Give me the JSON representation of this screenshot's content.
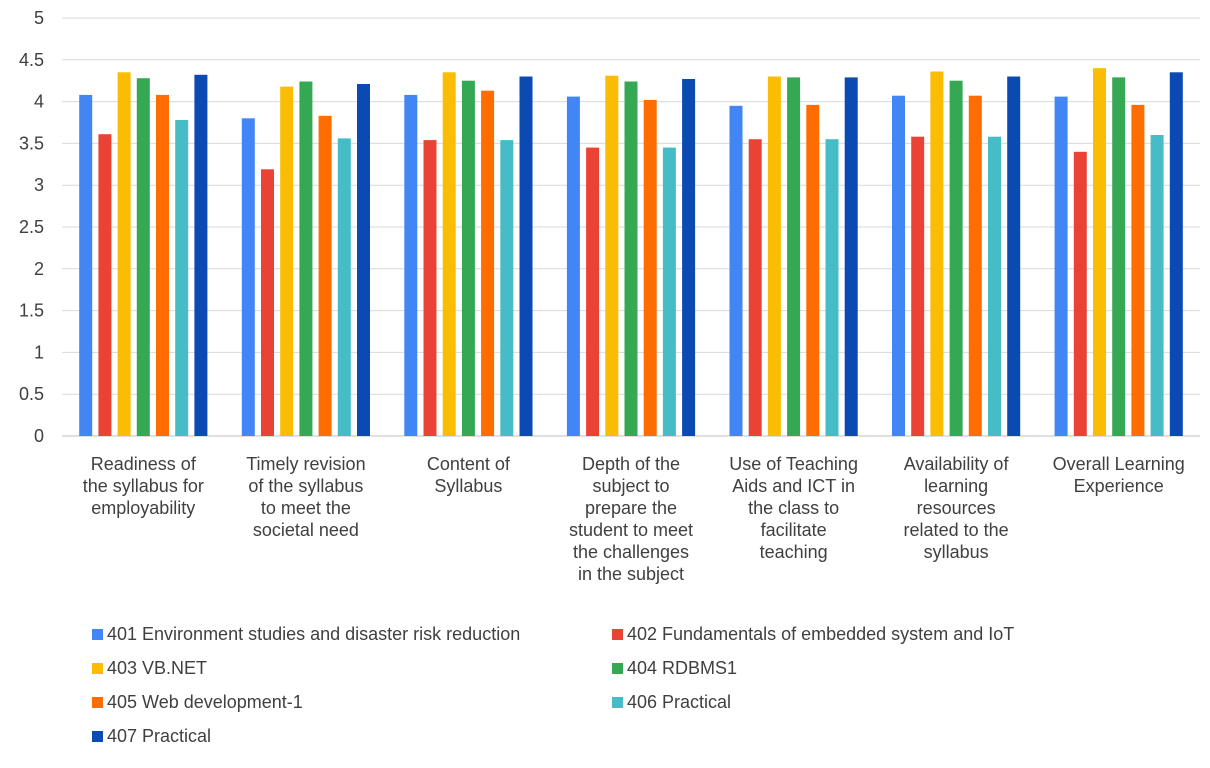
{
  "chart_data": {
    "type": "bar",
    "categories": [
      [
        "Readiness of",
        "the syllabus for",
        "employability"
      ],
      [
        "Timely revision",
        "of the syllabus",
        "to meet the",
        "societal need"
      ],
      [
        "Content of",
        "Syllabus"
      ],
      [
        "Depth of the",
        "subject to",
        "prepare the",
        "student to meet",
        "the challenges",
        "in the subject"
      ],
      [
        "Use of Teaching",
        "Aids and ICT in",
        "the class to",
        "facilitate",
        "teaching"
      ],
      [
        "Availability of",
        "learning",
        "resources",
        "related to the",
        "syllabus"
      ],
      [
        "Overall Learning",
        "Experience"
      ]
    ],
    "series": [
      {
        "name": "401 Environment studies and disaster risk reduction",
        "color": "#4285F4",
        "values": [
          4.08,
          3.8,
          4.08,
          4.06,
          3.95,
          4.07,
          4.06
        ]
      },
      {
        "name": "402 Fundamentals of embedded system and IoT",
        "color": "#EA4335",
        "values": [
          3.61,
          3.19,
          3.54,
          3.45,
          3.55,
          3.58,
          3.4
        ]
      },
      {
        "name": "403 VB.NET",
        "color": "#FBBC04",
        "values": [
          4.35,
          4.18,
          4.35,
          4.31,
          4.3,
          4.36,
          4.4
        ]
      },
      {
        "name": "404 RDBMS1",
        "color": "#34A853",
        "values": [
          4.28,
          4.24,
          4.25,
          4.24,
          4.29,
          4.25,
          4.29
        ]
      },
      {
        "name": "405 Web development-1",
        "color": "#FF6D01",
        "values": [
          4.08,
          3.83,
          4.13,
          4.02,
          3.96,
          4.07,
          3.96
        ]
      },
      {
        "name": "406 Practical",
        "color": "#46BDC6",
        "values": [
          3.78,
          3.56,
          3.54,
          3.45,
          3.55,
          3.58,
          3.6
        ]
      },
      {
        "name": "407 Practical",
        "color": "#0B49B3",
        "values": [
          4.32,
          4.21,
          4.3,
          4.27,
          4.29,
          4.3,
          4.35
        ]
      }
    ],
    "yticks": [
      "0",
      "0.5",
      "1",
      "1.5",
      "2",
      "2.5",
      "3",
      "3.5",
      "4",
      "4.5",
      "5"
    ],
    "ylim": [
      0,
      5
    ],
    "grid": true,
    "legend": "bottom"
  }
}
